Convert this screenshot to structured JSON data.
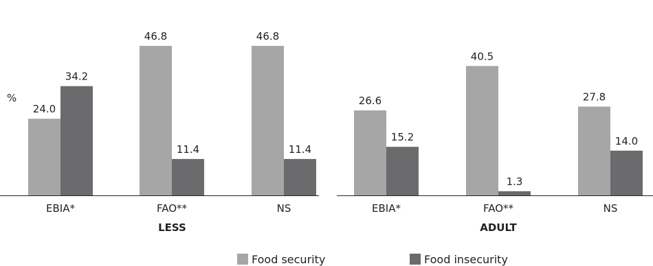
{
  "chart_data": {
    "type": "bar",
    "ylabel": "%",
    "ylim": [
      0,
      50
    ],
    "grid": false,
    "legend_position": "bottom",
    "colors": {
      "Food security": "#a6a6a6",
      "Food insecurity": "#6b6b6e"
    },
    "series_names": [
      "Food security",
      "Food insecurity"
    ],
    "panels": [
      {
        "group_label": "LESS",
        "categories": [
          "EBIA*",
          "FAO**",
          "NS"
        ],
        "series": [
          {
            "name": "Food security",
            "values": [
              24.0,
              46.8,
              46.8
            ],
            "labels": [
              "24.0",
              "46.8",
              "46.8"
            ]
          },
          {
            "name": "Food insecurity",
            "values": [
              34.2,
              11.4,
              11.4
            ],
            "labels": [
              "34.2",
              "11.4",
              "11.4"
            ]
          }
        ]
      },
      {
        "group_label": "ADULT",
        "categories": [
          "EBIA*",
          "FAO**",
          "NS"
        ],
        "series": [
          {
            "name": "Food security",
            "values": [
              26.6,
              40.5,
              27.8
            ],
            "labels": [
              "26.6",
              "40.5",
              "27.8"
            ]
          },
          {
            "name": "Food insecurity",
            "values": [
              15.2,
              1.3,
              14.0
            ],
            "labels": [
              "15.2",
              "1.3",
              "14.0"
            ]
          }
        ]
      }
    ]
  }
}
